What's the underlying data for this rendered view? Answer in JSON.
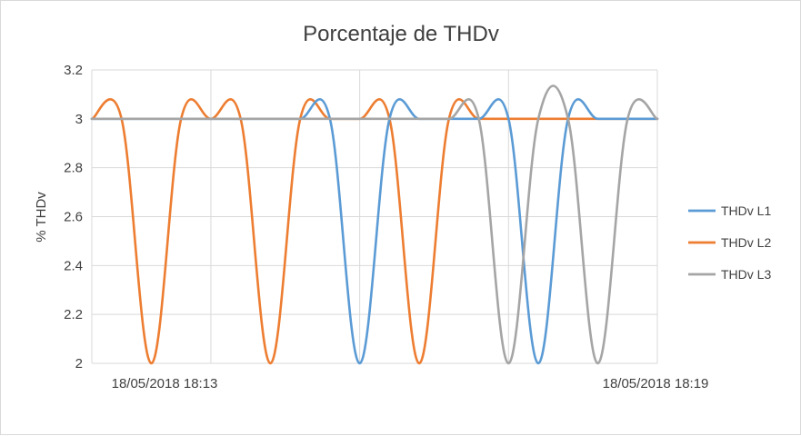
{
  "chart_data": {
    "type": "line",
    "title": "Porcentaje de THDv",
    "xlabel": "",
    "ylabel": "% THDv",
    "ylim": [
      2,
      3.2
    ],
    "y_ticks": [
      "2",
      "2.2",
      "2.4",
      "2.6",
      "2.8",
      "3",
      "3.2"
    ],
    "x_tick_labels": [
      "18/05/2018 18:13",
      "18/05/2018 18:19"
    ],
    "x_range": [
      0,
      19
    ],
    "x_gridlines": [
      0,
      4,
      9,
      14,
      19
    ],
    "grid": true,
    "legend_position": "right",
    "x": [
      0,
      1,
      2,
      3,
      4,
      5,
      6,
      7,
      8,
      9,
      10,
      11,
      12,
      13,
      14,
      15,
      16,
      17,
      18,
      19
    ],
    "series": [
      {
        "name": "THDv L1",
        "color": "#5b9bd5",
        "values": [
          3,
          3,
          3,
          3,
          3,
          3,
          3,
          3,
          3,
          2,
          3,
          3,
          3,
          3,
          3,
          2,
          3,
          3,
          3,
          3
        ]
      },
      {
        "name": "THDv L2",
        "color": "#ed7d31",
        "values": [
          3,
          3,
          2,
          3,
          3,
          3,
          2,
          3,
          3,
          3,
          3,
          2,
          3,
          3,
          3,
          3,
          3,
          3,
          3,
          3
        ]
      },
      {
        "name": "THDv L3",
        "color": "#a5a5a5",
        "values": [
          3,
          3,
          3,
          3,
          3,
          3,
          3,
          3,
          3,
          3,
          3,
          3,
          3,
          3,
          2,
          3,
          3,
          2,
          3,
          3
        ]
      }
    ]
  }
}
